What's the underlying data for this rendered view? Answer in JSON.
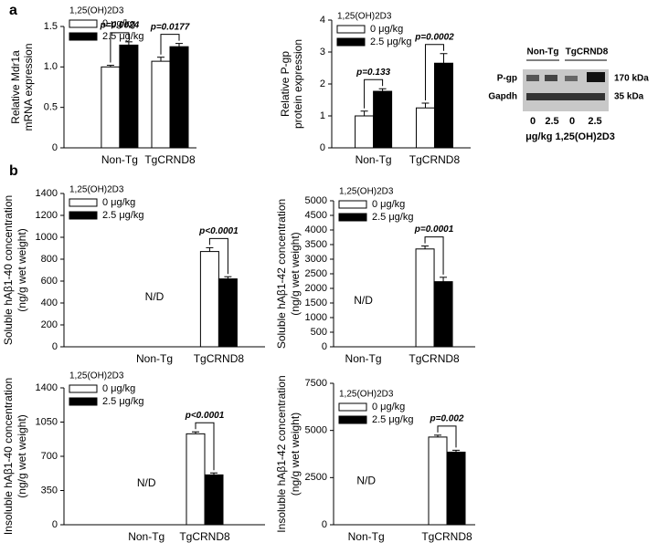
{
  "panels": [
    "a",
    "b"
  ],
  "chart_data": [
    {
      "type": "bar",
      "ylabel": [
        "Relative Mdr1a",
        "mRNA expression"
      ],
      "legend_title": "1,25(OH)2D3",
      "legend": "upper left",
      "categories": [
        "Non-Tg",
        "TgCRND8"
      ],
      "series": [
        {
          "name": "0 μg/kg",
          "color": "#ffffff",
          "values": [
            1.0,
            1.07
          ],
          "errors": [
            0.02,
            0.05
          ]
        },
        {
          "name": "2.5 μg/kg",
          "color": "#000000",
          "values": [
            1.27,
            1.25
          ],
          "errors": [
            0.04,
            0.04
          ]
        }
      ],
      "ylim": [
        0,
        1.5
      ],
      "yticks": [
        0,
        0.5,
        {
          "value": 1,
          "label": "1.0"
        },
        1.5
      ],
      "pvalues": [
        "p=0.0024",
        "p=0.0177"
      ]
    },
    {
      "type": "bar",
      "ylabel": [
        "Relative P-gp",
        "protein expression"
      ],
      "legend_title": "1,25(OH)2D3",
      "legend": "upper left",
      "categories": [
        "Non-Tg",
        "TgCRND8"
      ],
      "series": [
        {
          "name": "0 μg/kg",
          "color": "#ffffff",
          "values": [
            1.0,
            1.25
          ],
          "errors": [
            0.15,
            0.15
          ]
        },
        {
          "name": "2.5 μg/kg",
          "color": "#000000",
          "values": [
            1.77,
            2.65
          ],
          "errors": [
            0.08,
            0.3
          ]
        }
      ],
      "ylim": [
        0,
        4
      ],
      "yticks": [
        0,
        1,
        2,
        3,
        4
      ],
      "pvalues": [
        "p=0.133",
        "p=0.0002"
      ]
    },
    {
      "type": "bar",
      "ylabel": [
        "Soluble hAβ1-40 concentration",
        "(ng/g wet weight)"
      ],
      "legend_title": "1,25(OH)2D3",
      "legend": "upper left",
      "categories": [
        "Non-Tg",
        "TgCRND8"
      ],
      "series": [
        {
          "name": "0 μg/kg",
          "color": "#ffffff",
          "values": [
            null,
            870
          ],
          "errors": [
            null,
            35
          ]
        },
        {
          "name": "2.5 μg/kg",
          "color": "#000000",
          "values": [
            null,
            620
          ],
          "errors": [
            null,
            20
          ]
        }
      ],
      "ylim": [
        0,
        1400
      ],
      "yticks": [
        0,
        200,
        400,
        600,
        800,
        1000,
        1200,
        1400
      ],
      "pvalues": [
        null,
        "p<0.0001"
      ],
      "na_label": "N/D"
    },
    {
      "type": "bar",
      "ylabel": [
        "Soluble hAβ1-42 concentration",
        "(ng/g wet weight)"
      ],
      "legend_title": "1,25(OH)2D3",
      "legend": "upper left",
      "categories": [
        "Non-Tg",
        "TgCRND8"
      ],
      "series": [
        {
          "name": "0 μg/kg",
          "color": "#ffffff",
          "values": [
            null,
            3350
          ],
          "errors": [
            null,
            100
          ]
        },
        {
          "name": "2.5 μg/kg",
          "color": "#000000",
          "values": [
            null,
            2230
          ],
          "errors": [
            null,
            150
          ]
        }
      ],
      "ylim": [
        0,
        5000
      ],
      "yticks": [
        0,
        500,
        1000,
        1500,
        2000,
        2500,
        3000,
        3500,
        4000,
        4500,
        5000
      ],
      "pvalues": [
        null,
        "p=0.0001"
      ],
      "na_label": "N/D"
    },
    {
      "type": "bar",
      "ylabel": [
        "Insoluble hAβ1-40 concentration",
        "(ng/g wet weight)"
      ],
      "legend_title": "1,25(OH)2D3",
      "legend": "upper left",
      "categories": [
        "Non-Tg",
        "TgCRND8"
      ],
      "series": [
        {
          "name": "0 μg/kg",
          "color": "#ffffff",
          "values": [
            null,
            930
          ],
          "errors": [
            null,
            20
          ]
        },
        {
          "name": "2.5 μg/kg",
          "color": "#000000",
          "values": [
            null,
            510
          ],
          "errors": [
            null,
            20
          ]
        }
      ],
      "ylim": [
        0,
        1400
      ],
      "yticks": [
        0,
        350,
        700,
        1050,
        1400
      ],
      "pvalues": [
        null,
        "p<0.0001"
      ],
      "na_label": "N/D"
    },
    {
      "type": "bar",
      "ylabel": [
        "Insoluble hAβ1-42 concentration",
        "(ng/g wet weight)"
      ],
      "legend_title": "1,25(OH)2D3",
      "legend": "upper left",
      "categories": [
        "Non-Tg",
        "TgCRND8"
      ],
      "series": [
        {
          "name": "0 μg/kg",
          "color": "#ffffff",
          "values": [
            null,
            4650
          ],
          "errors": [
            null,
            100
          ]
        },
        {
          "name": "2.5 μg/kg",
          "color": "#000000",
          "values": [
            null,
            3850
          ],
          "errors": [
            null,
            100
          ]
        }
      ],
      "ylim": [
        0,
        7500
      ],
      "yticks": [
        0,
        2500,
        5000,
        7500
      ],
      "pvalues": [
        null,
        "p=0.002"
      ],
      "na_label": "N/D"
    }
  ],
  "blot": {
    "groups": [
      "Non-Tg",
      "TgCRND8"
    ],
    "rows": [
      "P-gp",
      "Gapdh"
    ],
    "sizes": [
      "170 kDa",
      "35 kDa"
    ],
    "lanes": [
      "0",
      "2.5",
      "0",
      "2.5"
    ],
    "caption": "μg/kg 1,25(OH)2D3"
  }
}
